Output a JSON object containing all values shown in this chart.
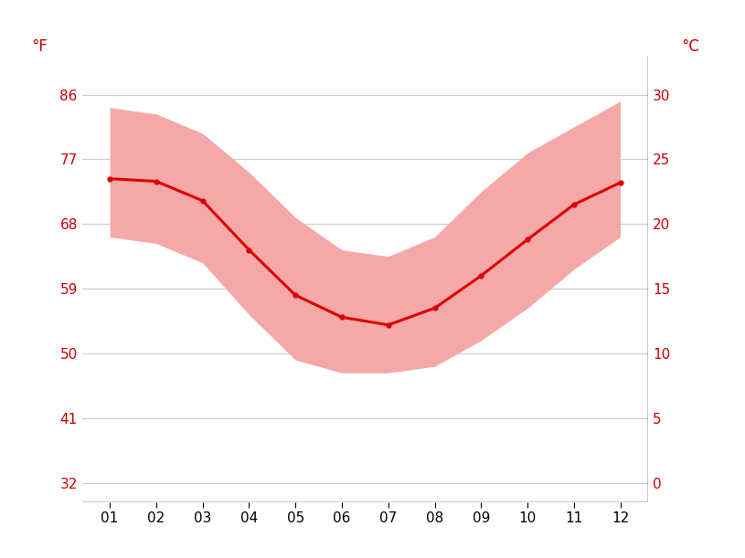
{
  "months": [
    1,
    2,
    3,
    4,
    5,
    6,
    7,
    8,
    9,
    10,
    11,
    12
  ],
  "month_labels": [
    "01",
    "02",
    "03",
    "04",
    "05",
    "06",
    "07",
    "08",
    "09",
    "10",
    "11",
    "12"
  ],
  "avg_temp_c": [
    23.5,
    23.3,
    21.8,
    18.0,
    14.5,
    12.8,
    12.2,
    13.5,
    16.0,
    18.8,
    21.5,
    23.2
  ],
  "max_temp_c": [
    29.0,
    28.5,
    27.0,
    24.0,
    20.5,
    18.0,
    17.5,
    19.0,
    22.5,
    25.5,
    27.5,
    29.5
  ],
  "min_temp_c": [
    19.0,
    18.5,
    17.0,
    13.0,
    9.5,
    8.5,
    8.5,
    9.0,
    11.0,
    13.5,
    16.5,
    19.0
  ],
  "line_color": "#dd0000",
  "band_color": "#f5a8a8",
  "background_color": "#ffffff",
  "grid_color": "#cccccc",
  "text_color": "#cc0000",
  "xlabel_color": "#000000",
  "ylabel_left": "°F",
  "ylabel_right": "°C",
  "yticks_c": [
    0,
    5,
    10,
    15,
    20,
    25,
    30
  ],
  "yticks_f": [
    32,
    41,
    50,
    59,
    68,
    77,
    86
  ],
  "ylim_c": [
    -1.5,
    33
  ],
  "xlim": [
    0.4,
    12.6
  ]
}
